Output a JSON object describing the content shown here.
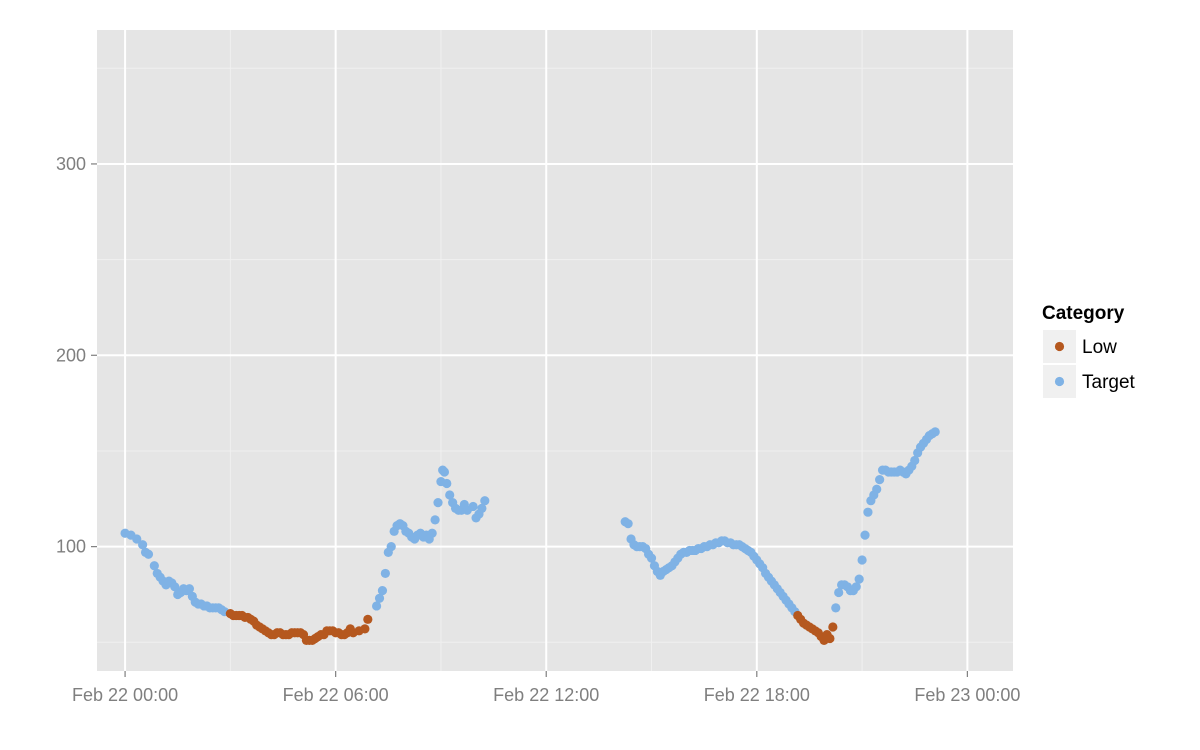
{
  "chart_data": {
    "type": "scatter",
    "x_axis_type": "datetime",
    "xlim": [
      "2014-02-21 23:12",
      "2014-02-23 01:18"
    ],
    "ylim": [
      35,
      370
    ],
    "x_ticks": [
      {
        "value": "2014-02-22 00:00",
        "label": "Feb 22 00:00"
      },
      {
        "value": "2014-02-22 06:00",
        "label": "Feb 22 06:00"
      },
      {
        "value": "2014-02-22 12:00",
        "label": "Feb 22 12:00"
      },
      {
        "value": "2014-02-22 18:00",
        "label": "Feb 22 18:00"
      },
      {
        "value": "2014-02-23 00:00",
        "label": "Feb 23 00:00"
      }
    ],
    "y_ticks": [
      {
        "value": 100,
        "label": "100"
      },
      {
        "value": 200,
        "label": "200"
      },
      {
        "value": 300,
        "label": "300"
      }
    ],
    "grid": true,
    "legend": {
      "title": "Category",
      "position": "right"
    },
    "colors": {
      "Low": "#b5581f",
      "Target": "#7fb2e5",
      "panel": "#e5e5e5",
      "grid_major": "#ffffff",
      "grid_minor": "#f0f0f0"
    },
    "series": [
      {
        "name": "Target",
        "points": [
          [
            "2014-02-22 00:00",
            107
          ],
          [
            "2014-02-22 00:10",
            106
          ],
          [
            "2014-02-22 00:20",
            104
          ],
          [
            "2014-02-22 00:30",
            101
          ],
          [
            "2014-02-22 00:35",
            97
          ],
          [
            "2014-02-22 00:40",
            96
          ],
          [
            "2014-02-22 00:50",
            90
          ],
          [
            "2014-02-22 00:55",
            86
          ],
          [
            "2014-02-22 01:00",
            84
          ],
          [
            "2014-02-22 01:05",
            82
          ],
          [
            "2014-02-22 01:10",
            80
          ],
          [
            "2014-02-22 01:15",
            82
          ],
          [
            "2014-02-22 01:20",
            81
          ],
          [
            "2014-02-22 01:25",
            79
          ],
          [
            "2014-02-22 01:30",
            75
          ],
          [
            "2014-02-22 01:35",
            76
          ],
          [
            "2014-02-22 01:40",
            78
          ],
          [
            "2014-02-22 01:45",
            77
          ],
          [
            "2014-02-22 01:50",
            78
          ],
          [
            "2014-02-22 01:55",
            74
          ],
          [
            "2014-02-22 02:00",
            71
          ],
          [
            "2014-02-22 02:05",
            70
          ],
          [
            "2014-02-22 02:10",
            70
          ],
          [
            "2014-02-22 02:15",
            69
          ],
          [
            "2014-02-22 02:20",
            69
          ],
          [
            "2014-02-22 02:25",
            68
          ],
          [
            "2014-02-22 02:30",
            68
          ],
          [
            "2014-02-22 02:35",
            68
          ],
          [
            "2014-02-22 02:40",
            68
          ],
          [
            "2014-02-22 02:45",
            67
          ],
          [
            "2014-02-22 02:50",
            66
          ],
          [
            "2014-02-22 07:10",
            69
          ],
          [
            "2014-02-22 07:15",
            73
          ],
          [
            "2014-02-22 07:20",
            77
          ],
          [
            "2014-02-22 07:25",
            86
          ],
          [
            "2014-02-22 07:30",
            97
          ],
          [
            "2014-02-22 07:35",
            100
          ],
          [
            "2014-02-22 07:40",
            108
          ],
          [
            "2014-02-22 07:45",
            111
          ],
          [
            "2014-02-22 07:50",
            112
          ],
          [
            "2014-02-22 07:55",
            111
          ],
          [
            "2014-02-22 08:00",
            108
          ],
          [
            "2014-02-22 08:05",
            107
          ],
          [
            "2014-02-22 08:10",
            105
          ],
          [
            "2014-02-22 08:15",
            104
          ],
          [
            "2014-02-22 08:20",
            106
          ],
          [
            "2014-02-22 08:25",
            107
          ],
          [
            "2014-02-22 08:30",
            105
          ],
          [
            "2014-02-22 08:35",
            106
          ],
          [
            "2014-02-22 08:40",
            104
          ],
          [
            "2014-02-22 08:45",
            107
          ],
          [
            "2014-02-22 08:50",
            114
          ],
          [
            "2014-02-22 08:55",
            123
          ],
          [
            "2014-02-22 09:00",
            134
          ],
          [
            "2014-02-22 09:03",
            140
          ],
          [
            "2014-02-22 09:06",
            139
          ],
          [
            "2014-02-22 09:10",
            133
          ],
          [
            "2014-02-22 09:15",
            127
          ],
          [
            "2014-02-22 09:20",
            123
          ],
          [
            "2014-02-22 09:25",
            120
          ],
          [
            "2014-02-22 09:30",
            119
          ],
          [
            "2014-02-22 09:35",
            119
          ],
          [
            "2014-02-22 09:40",
            122
          ],
          [
            "2014-02-22 09:45",
            119
          ],
          [
            "2014-02-22 09:55",
            121
          ],
          [
            "2014-02-22 10:00",
            115
          ],
          [
            "2014-02-22 10:05",
            117
          ],
          [
            "2014-02-22 10:10",
            120
          ],
          [
            "2014-02-22 10:15",
            124
          ],
          [
            "2014-02-22 14:15",
            113
          ],
          [
            "2014-02-22 14:20",
            112
          ],
          [
            "2014-02-22 14:25",
            104
          ],
          [
            "2014-02-22 14:30",
            101
          ],
          [
            "2014-02-22 14:35",
            100
          ],
          [
            "2014-02-22 14:40",
            100
          ],
          [
            "2014-02-22 14:45",
            100
          ],
          [
            "2014-02-22 14:50",
            99
          ],
          [
            "2014-02-22 14:55",
            96
          ],
          [
            "2014-02-22 15:00",
            94
          ],
          [
            "2014-02-22 15:05",
            90
          ],
          [
            "2014-02-22 15:10",
            87
          ],
          [
            "2014-02-22 15:15",
            85
          ],
          [
            "2014-02-22 15:20",
            87
          ],
          [
            "2014-02-22 15:25",
            88
          ],
          [
            "2014-02-22 15:30",
            89
          ],
          [
            "2014-02-22 15:35",
            90
          ],
          [
            "2014-02-22 15:40",
            92
          ],
          [
            "2014-02-22 15:45",
            94
          ],
          [
            "2014-02-22 15:50",
            96
          ],
          [
            "2014-02-22 15:55",
            97
          ],
          [
            "2014-02-22 16:00",
            97
          ],
          [
            "2014-02-22 16:05",
            98
          ],
          [
            "2014-02-22 16:10",
            98
          ],
          [
            "2014-02-22 16:15",
            98
          ],
          [
            "2014-02-22 16:20",
            99
          ],
          [
            "2014-02-22 16:25",
            99
          ],
          [
            "2014-02-22 16:30",
            100
          ],
          [
            "2014-02-22 16:35",
            100
          ],
          [
            "2014-02-22 16:40",
            101
          ],
          [
            "2014-02-22 16:45",
            101
          ],
          [
            "2014-02-22 16:50",
            102
          ],
          [
            "2014-02-22 16:55",
            102
          ],
          [
            "2014-02-22 17:00",
            103
          ],
          [
            "2014-02-22 17:05",
            103
          ],
          [
            "2014-02-22 17:10",
            102
          ],
          [
            "2014-02-22 17:15",
            102
          ],
          [
            "2014-02-22 17:20",
            101
          ],
          [
            "2014-02-22 17:25",
            101
          ],
          [
            "2014-02-22 17:30",
            101
          ],
          [
            "2014-02-22 17:35",
            100
          ],
          [
            "2014-02-22 17:40",
            99
          ],
          [
            "2014-02-22 17:45",
            98
          ],
          [
            "2014-02-22 17:50",
            97
          ],
          [
            "2014-02-22 17:55",
            95
          ],
          [
            "2014-02-22 18:00",
            93
          ],
          [
            "2014-02-22 18:05",
            91
          ],
          [
            "2014-02-22 18:10",
            89
          ],
          [
            "2014-02-22 18:15",
            86
          ],
          [
            "2014-02-22 18:20",
            84
          ],
          [
            "2014-02-22 18:25",
            82
          ],
          [
            "2014-02-22 18:30",
            80
          ],
          [
            "2014-02-22 18:35",
            78
          ],
          [
            "2014-02-22 18:40",
            76
          ],
          [
            "2014-02-22 18:45",
            74
          ],
          [
            "2014-02-22 18:50",
            72
          ],
          [
            "2014-02-22 18:55",
            70
          ],
          [
            "2014-02-22 19:00",
            68
          ],
          [
            "2014-02-22 19:05",
            66
          ],
          [
            "2014-02-22 20:15",
            68
          ],
          [
            "2014-02-22 20:20",
            76
          ],
          [
            "2014-02-22 20:25",
            80
          ],
          [
            "2014-02-22 20:30",
            80
          ],
          [
            "2014-02-22 20:35",
            79
          ],
          [
            "2014-02-22 20:40",
            77
          ],
          [
            "2014-02-22 20:45",
            77
          ],
          [
            "2014-02-22 20:50",
            79
          ],
          [
            "2014-02-22 20:55",
            83
          ],
          [
            "2014-02-22 21:00",
            93
          ],
          [
            "2014-02-22 21:05",
            106
          ],
          [
            "2014-02-22 21:10",
            118
          ],
          [
            "2014-02-22 21:15",
            124
          ],
          [
            "2014-02-22 21:20",
            127
          ],
          [
            "2014-02-22 21:25",
            130
          ],
          [
            "2014-02-22 21:30",
            135
          ],
          [
            "2014-02-22 21:35",
            140
          ],
          [
            "2014-02-22 21:40",
            140
          ],
          [
            "2014-02-22 21:45",
            139
          ],
          [
            "2014-02-22 21:50",
            139
          ],
          [
            "2014-02-22 21:55",
            139
          ],
          [
            "2014-02-22 22:00",
            139
          ],
          [
            "2014-02-22 22:05",
            140
          ],
          [
            "2014-02-22 22:10",
            139
          ],
          [
            "2014-02-22 22:15",
            138
          ],
          [
            "2014-02-22 22:20",
            140
          ],
          [
            "2014-02-22 22:25",
            142
          ],
          [
            "2014-02-22 22:30",
            145
          ],
          [
            "2014-02-22 22:35",
            149
          ],
          [
            "2014-02-22 22:40",
            152
          ],
          [
            "2014-02-22 22:45",
            154
          ],
          [
            "2014-02-22 22:50",
            156
          ],
          [
            "2014-02-22 22:55",
            158
          ],
          [
            "2014-02-22 23:00",
            159
          ],
          [
            "2014-02-22 23:05",
            160
          ]
        ]
      },
      {
        "name": "Low",
        "points": [
          [
            "2014-02-22 03:00",
            65
          ],
          [
            "2014-02-22 03:05",
            64
          ],
          [
            "2014-02-22 03:10",
            64
          ],
          [
            "2014-02-22 03:15",
            64
          ],
          [
            "2014-02-22 03:20",
            64
          ],
          [
            "2014-02-22 03:25",
            63
          ],
          [
            "2014-02-22 03:30",
            63
          ],
          [
            "2014-02-22 03:35",
            62
          ],
          [
            "2014-02-22 03:40",
            61
          ],
          [
            "2014-02-22 03:45",
            59
          ],
          [
            "2014-02-22 03:50",
            58
          ],
          [
            "2014-02-22 03:55",
            57
          ],
          [
            "2014-02-22 04:00",
            56
          ],
          [
            "2014-02-22 04:05",
            55
          ],
          [
            "2014-02-22 04:10",
            54
          ],
          [
            "2014-02-22 04:15",
            54
          ],
          [
            "2014-02-22 04:20",
            55
          ],
          [
            "2014-02-22 04:25",
            55
          ],
          [
            "2014-02-22 04:30",
            54
          ],
          [
            "2014-02-22 04:35",
            54
          ],
          [
            "2014-02-22 04:40",
            54
          ],
          [
            "2014-02-22 04:45",
            55
          ],
          [
            "2014-02-22 04:50",
            55
          ],
          [
            "2014-02-22 04:55",
            55
          ],
          [
            "2014-02-22 05:00",
            55
          ],
          [
            "2014-02-22 05:05",
            54
          ],
          [
            "2014-02-22 05:10",
            51
          ],
          [
            "2014-02-22 05:15",
            51
          ],
          [
            "2014-02-22 05:20",
            51
          ],
          [
            "2014-02-22 05:25",
            52
          ],
          [
            "2014-02-22 05:30",
            53
          ],
          [
            "2014-02-22 05:35",
            54
          ],
          [
            "2014-02-22 05:40",
            54
          ],
          [
            "2014-02-22 05:45",
            56
          ],
          [
            "2014-02-22 05:50",
            56
          ],
          [
            "2014-02-22 05:55",
            56
          ],
          [
            "2014-02-22 06:00",
            55
          ],
          [
            "2014-02-22 06:05",
            55
          ],
          [
            "2014-02-22 06:10",
            54
          ],
          [
            "2014-02-22 06:15",
            54
          ],
          [
            "2014-02-22 06:20",
            55
          ],
          [
            "2014-02-22 06:25",
            57
          ],
          [
            "2014-02-22 06:30",
            55
          ],
          [
            "2014-02-22 06:40",
            56
          ],
          [
            "2014-02-22 06:50",
            57
          ],
          [
            "2014-02-22 06:55",
            62
          ],
          [
            "2014-02-22 19:10",
            64
          ],
          [
            "2014-02-22 19:15",
            62
          ],
          [
            "2014-02-22 19:20",
            60
          ],
          [
            "2014-02-22 19:25",
            59
          ],
          [
            "2014-02-22 19:30",
            58
          ],
          [
            "2014-02-22 19:35",
            57
          ],
          [
            "2014-02-22 19:40",
            56
          ],
          [
            "2014-02-22 19:45",
            55
          ],
          [
            "2014-02-22 19:50",
            53
          ],
          [
            "2014-02-22 19:55",
            51
          ],
          [
            "2014-02-22 20:00",
            54
          ],
          [
            "2014-02-22 20:05",
            52
          ],
          [
            "2014-02-22 20:10",
            58
          ]
        ]
      }
    ]
  }
}
